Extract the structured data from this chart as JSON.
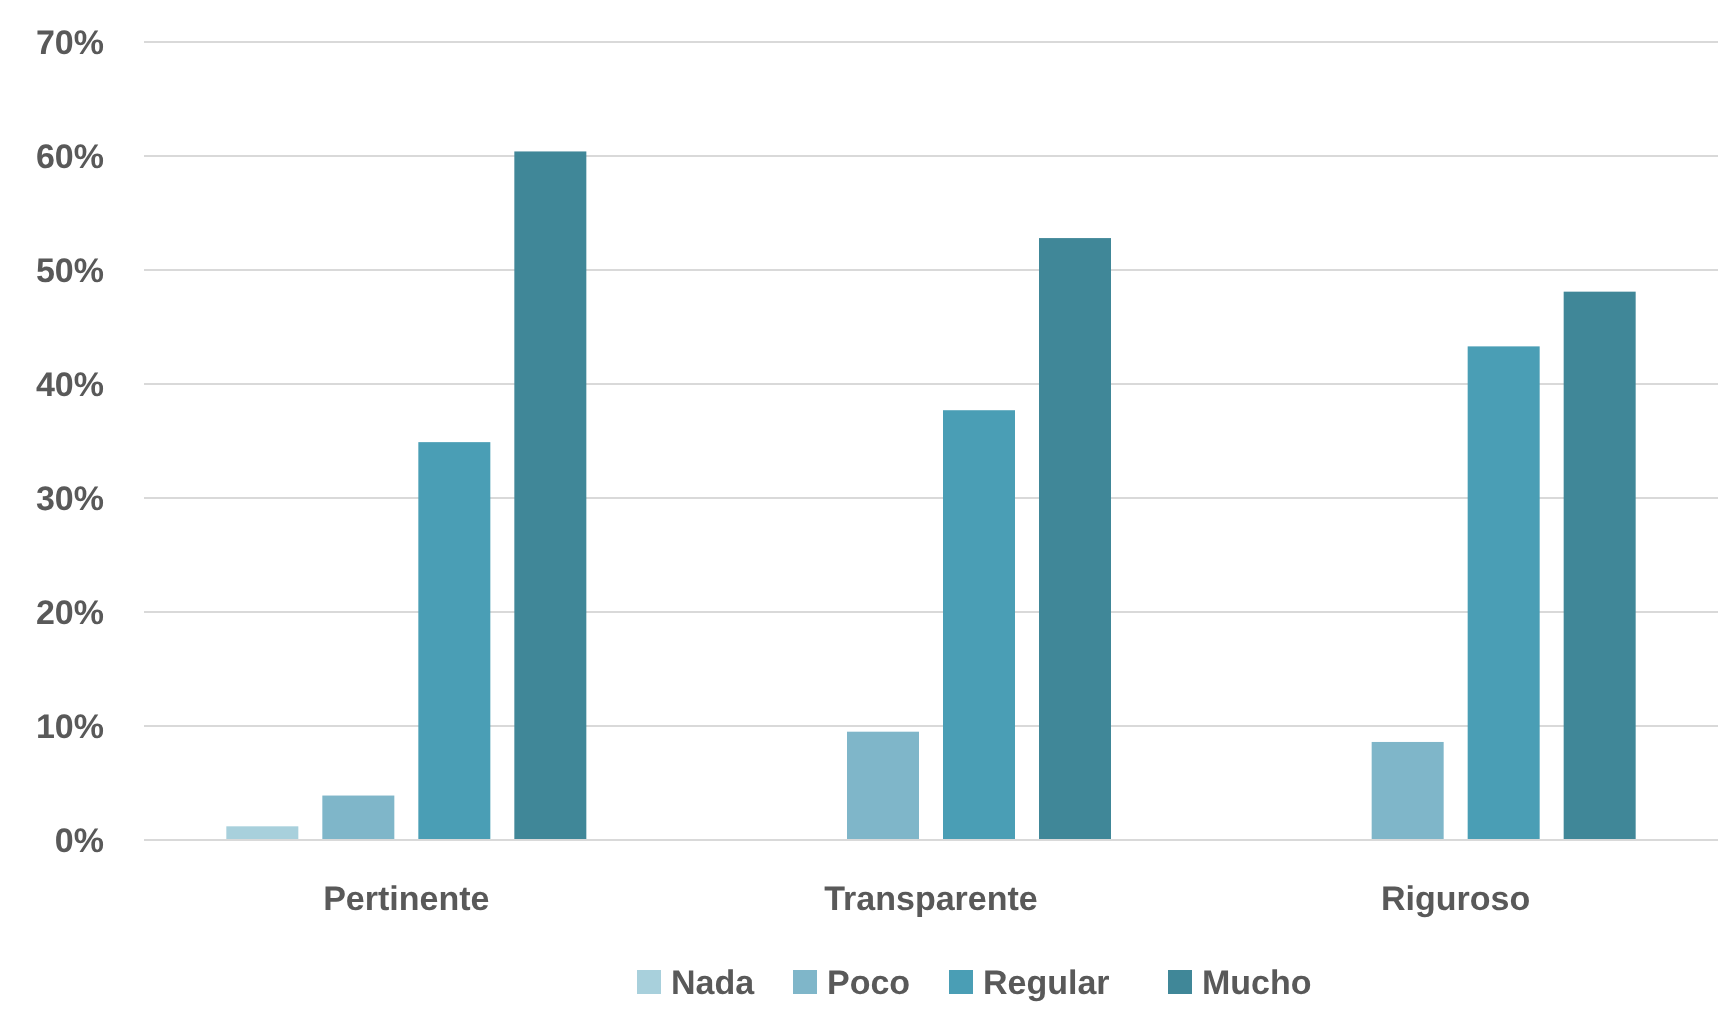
{
  "chart_data": {
    "type": "bar",
    "categories": [
      "Pertinente",
      "Transparente",
      "Riguroso"
    ],
    "series": [
      {
        "name": "Nada",
        "color": "#a8d0dc",
        "values": [
          1.2,
          0,
          0
        ]
      },
      {
        "name": "Poco",
        "color": "#7fb6c9",
        "values": [
          3.9,
          9.5,
          8.6
        ]
      },
      {
        "name": "Regular",
        "color": "#4a9eb5",
        "values": [
          34.9,
          37.7,
          43.3
        ]
      },
      {
        "name": "Mucho",
        "color": "#408798",
        "values": [
          60.4,
          52.8,
          48.1
        ]
      }
    ],
    "ylim": [
      0,
      70
    ],
    "yticks": [
      {
        "value": 0,
        "label": "0%"
      },
      {
        "value": 10,
        "label": "10%"
      },
      {
        "value": 20,
        "label": "20%"
      },
      {
        "value": 30,
        "label": "30%"
      },
      {
        "value": 40,
        "label": "40%"
      },
      {
        "value": 50,
        "label": "50%"
      },
      {
        "value": 60,
        "label": "60%"
      },
      {
        "value": 70,
        "label": "70%"
      }
    ],
    "grid": "y",
    "legend": "bottom"
  }
}
